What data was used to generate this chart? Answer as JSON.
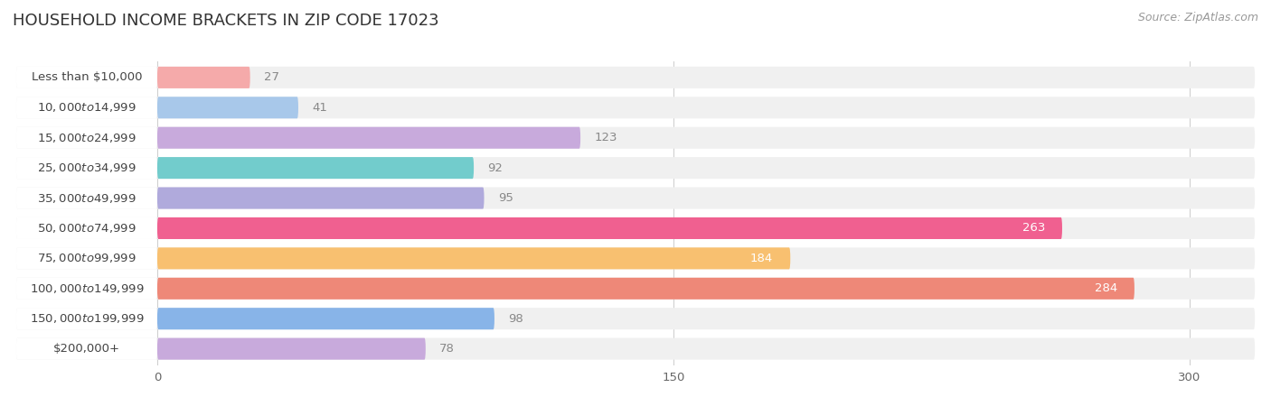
{
  "title": "HOUSEHOLD INCOME BRACKETS IN ZIP CODE 17023",
  "source": "Source: ZipAtlas.com",
  "categories": [
    "Less than $10,000",
    "$10,000 to $14,999",
    "$15,000 to $24,999",
    "$25,000 to $34,999",
    "$35,000 to $49,999",
    "$50,000 to $74,999",
    "$75,000 to $99,999",
    "$100,000 to $149,999",
    "$150,000 to $199,999",
    "$200,000+"
  ],
  "values": [
    27,
    41,
    123,
    92,
    95,
    263,
    184,
    284,
    98,
    78
  ],
  "colors": [
    "#F5AAAA",
    "#A8C8EA",
    "#C8AADC",
    "#72CCCC",
    "#B0AADC",
    "#F06090",
    "#F8C070",
    "#EE8878",
    "#88B4E8",
    "#C8AADC"
  ],
  "value_colors": [
    "#888888",
    "#888888",
    "#888888",
    "#888888",
    "#888888",
    "#ffffff",
    "#ffffff",
    "#ffffff",
    "#888888",
    "#888888"
  ],
  "xlim_data": [
    0,
    300
  ],
  "xlim_plot": [
    -145,
    320
  ],
  "xticks": [
    0,
    150,
    300
  ],
  "bg_color": "#ffffff",
  "row_bg_color": "#f0f0f0",
  "bar_bg_color": "#e8e8e8",
  "label_bg_color": "#ffffff",
  "title_fontsize": 13,
  "label_fontsize": 9.5,
  "value_fontsize": 9.5,
  "source_fontsize": 9
}
